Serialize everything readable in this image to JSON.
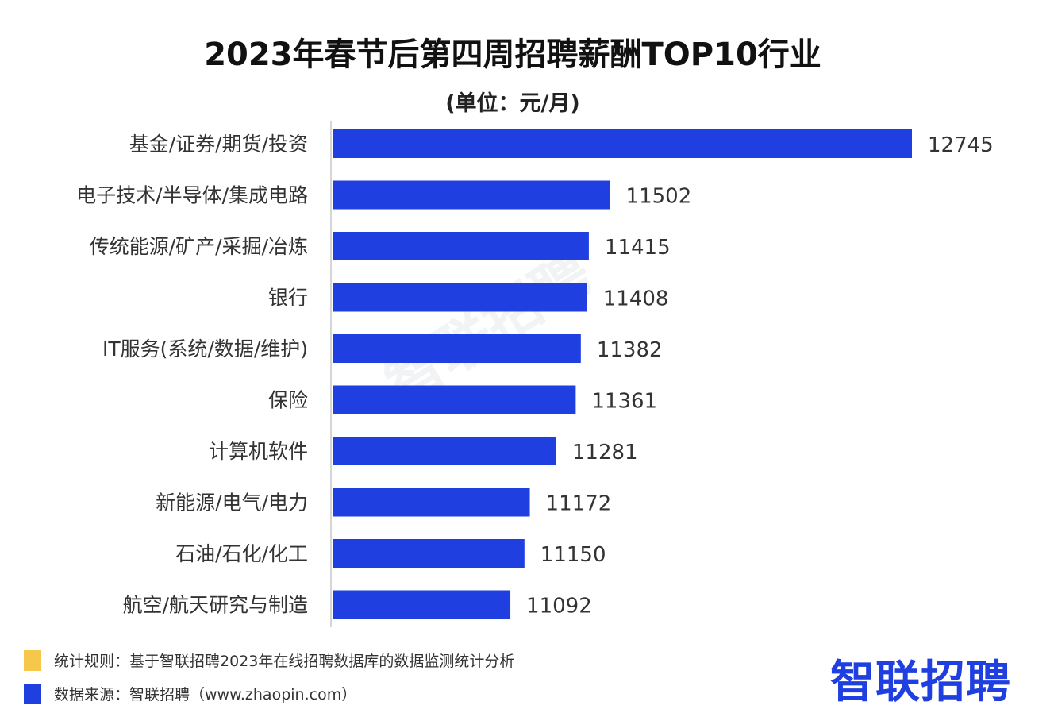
{
  "title": "2023年春节后第四周招聘薪酬TOP10行业",
  "subtitle": "(单位：元/月)",
  "chart_data": {
    "type": "bar",
    "orientation": "horizontal",
    "title": "2023年春节后第四周招聘薪酬TOP10行业",
    "subtitle": "(单位：元/月)",
    "categories": [
      "基金/证券/期货/投资",
      "电子技术/半导体/集成电路",
      "传统能源/矿产/采掘/冶炼",
      "银行",
      "IT服务(系统/数据/维护)",
      "保险",
      "计算机软件",
      "新能源/电气/电力",
      "石油/石化/化工",
      "航空/航天研究与制造"
    ],
    "values": [
      12745,
      11502,
      11415,
      11408,
      11382,
      11361,
      11281,
      11172,
      11150,
      11092
    ],
    "bar_color": "#1f3fe0",
    "xlim": [
      10360,
      12745
    ],
    "grid": false,
    "legend": "none"
  },
  "watermark": "智联招聘",
  "footer": {
    "rule_text": "统计规则：基于智联招聘2023年在线招聘数据库的数据监测统计分析",
    "rule_color": "#f5c84b",
    "source_text": "数据来源：智联招聘（www.zhaopin.com）",
    "source_color": "#1f3fe0"
  },
  "logo_text": "智联招聘"
}
